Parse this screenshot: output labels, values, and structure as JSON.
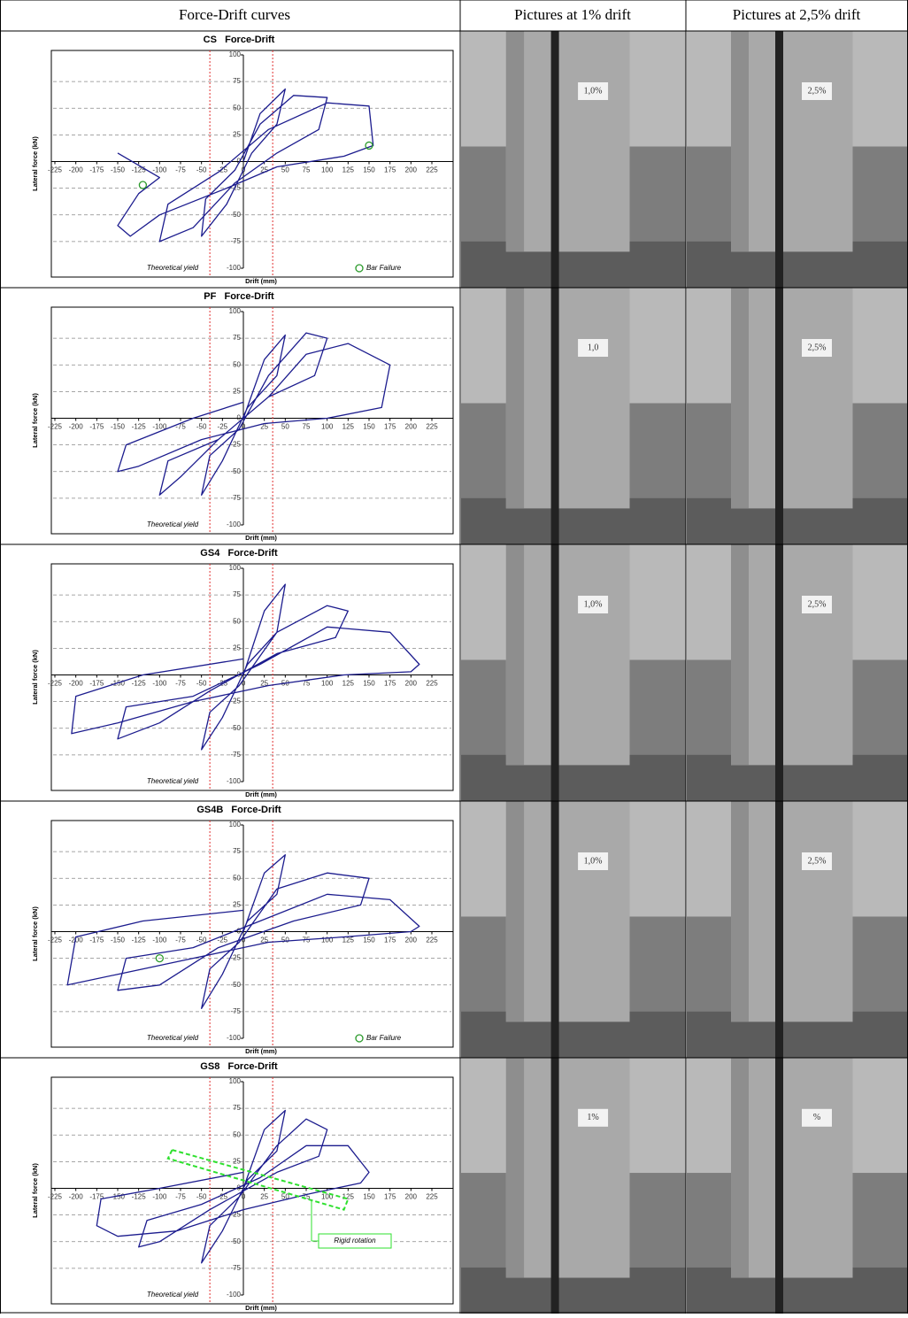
{
  "table": {
    "headers": [
      "Force-Drift curves",
      "Pictures at 1% drift",
      "Pictures at 2,5% drift"
    ],
    "rows": [
      {
        "photo_labels": [
          "1,0%",
          "2,5%"
        ]
      },
      {
        "photo_labels": [
          "1,0",
          "2,5%"
        ]
      },
      {
        "photo_labels": [
          "1,0%",
          "2,5%"
        ]
      },
      {
        "photo_labels": [
          "1,0%",
          "2,5%"
        ]
      },
      {
        "photo_labels": [
          "1%",
          "%"
        ]
      }
    ]
  },
  "chart_data": [
    {
      "type": "line",
      "title": "CS   Force-Drift",
      "xlabel": "Drift (mm)",
      "ylabel": "Lateral force (kN)",
      "xlim": [
        -225,
        225
      ],
      "ylim": [
        -100,
        100
      ],
      "xticks": [
        -225,
        -200,
        -175,
        -150,
        -125,
        -100,
        -75,
        -50,
        -25,
        0,
        25,
        50,
        75,
        100,
        125,
        150,
        175,
        200,
        225
      ],
      "yticks": [
        -100,
        -75,
        -50,
        -25,
        0,
        25,
        50,
        75,
        100
      ],
      "x": [
        0,
        20,
        50,
        40,
        10,
        -20,
        -50,
        -45,
        -10,
        20,
        60,
        100,
        90,
        40,
        -10,
        -60,
        -100,
        -90,
        -30,
        30,
        100,
        150,
        155,
        120,
        40,
        -20,
        -100,
        -135,
        -150,
        -125,
        -100,
        -150
      ],
      "series": [
        {
          "color": "#1c1c8e",
          "values": [
            0,
            45,
            68,
            35,
            8,
            -40,
            -70,
            -35,
            -8,
            35,
            62,
            60,
            30,
            8,
            -20,
            -62,
            -75,
            -40,
            -10,
            30,
            55,
            52,
            15,
            5,
            -5,
            -25,
            -50,
            -70,
            -60,
            -30,
            -15,
            8
          ]
        }
      ],
      "yield_lines": {
        "label": "Theoretical yield",
        "x": [
          -40,
          35
        ],
        "color": "#e03030"
      },
      "markers": {
        "name": "Bar Failure",
        "color": "#2a9a2a",
        "x": [
          -120,
          150
        ],
        "y": [
          -22,
          15
        ]
      }
    },
    {
      "type": "line",
      "title": "PF   Force-Drift",
      "xlabel": "Drift (mm)",
      "ylabel": "Lateral force (kN)",
      "xlim": [
        -225,
        225
      ],
      "ylim": [
        -100,
        100
      ],
      "xticks": [
        -225,
        -200,
        -175,
        -150,
        -125,
        -100,
        -75,
        -50,
        -25,
        0,
        25,
        50,
        75,
        100,
        125,
        150,
        175,
        200,
        225
      ],
      "yticks": [
        -100,
        -75,
        -50,
        -25,
        0,
        25,
        50,
        75,
        100
      ],
      "x": [
        0,
        25,
        50,
        40,
        5,
        -25,
        -50,
        -40,
        -5,
        30,
        75,
        100,
        85,
        30,
        -30,
        -75,
        -100,
        -90,
        -30,
        30,
        75,
        125,
        175,
        165,
        100,
        25,
        -50,
        -125,
        -150,
        -140,
        -60,
        0
      ],
      "series": [
        {
          "color": "#1c1c8e",
          "values": [
            0,
            55,
            78,
            40,
            10,
            -40,
            -72,
            -35,
            -10,
            40,
            80,
            75,
            40,
            20,
            -20,
            -55,
            -72,
            -40,
            -20,
            20,
            60,
            70,
            50,
            10,
            0,
            -5,
            -20,
            -45,
            -50,
            -25,
            0,
            15
          ]
        }
      ],
      "yield_lines": {
        "label": "Theoretical yield",
        "x": [
          -40,
          35
        ],
        "color": "#e03030"
      }
    },
    {
      "type": "line",
      "title": "GS4   Force-Drift",
      "xlabel": "Drift (mm)",
      "ylabel": "Lateral force (kN)",
      "xlim": [
        -225,
        225
      ],
      "ylim": [
        -100,
        100
      ],
      "xticks": [
        -225,
        -200,
        -175,
        -150,
        -125,
        -100,
        -75,
        -50,
        -25,
        0,
        25,
        50,
        75,
        100,
        125,
        150,
        175,
        200,
        225
      ],
      "yticks": [
        -100,
        -75,
        -50,
        -25,
        0,
        25,
        50,
        75,
        100
      ],
      "x": [
        0,
        25,
        50,
        40,
        5,
        -25,
        -50,
        -40,
        -5,
        40,
        100,
        125,
        110,
        40,
        -40,
        -100,
        -150,
        -140,
        -60,
        20,
        100,
        175,
        210,
        200,
        120,
        30,
        -60,
        -150,
        -205,
        -200,
        -120,
        0
      ],
      "series": [
        {
          "color": "#1c1c8e",
          "values": [
            0,
            60,
            85,
            40,
            10,
            -40,
            -70,
            -35,
            -10,
            40,
            65,
            60,
            35,
            20,
            -15,
            -45,
            -60,
            -30,
            -20,
            10,
            45,
            40,
            10,
            3,
            0,
            -10,
            -25,
            -45,
            -55,
            -20,
            0,
            15
          ]
        }
      ],
      "yield_lines": {
        "label": "Theoretical yield",
        "x": [
          -40,
          35
        ],
        "color": "#e03030"
      }
    },
    {
      "type": "line",
      "title": "GS4B   Force-Drift",
      "xlabel": "Drift (mm)",
      "ylabel": "Lateral force (kN)",
      "xlim": [
        -225,
        225
      ],
      "ylim": [
        -100,
        100
      ],
      "xticks": [
        -225,
        -200,
        -175,
        -150,
        -125,
        -100,
        -75,
        -50,
        -25,
        0,
        25,
        50,
        75,
        100,
        125,
        150,
        175,
        200,
        225
      ],
      "yticks": [
        -100,
        -75,
        -50,
        -25,
        0,
        25,
        50,
        75,
        100
      ],
      "x": [
        0,
        25,
        50,
        40,
        5,
        -25,
        -50,
        -40,
        -5,
        40,
        100,
        150,
        140,
        60,
        -30,
        -100,
        -150,
        -140,
        -60,
        20,
        100,
        175,
        210,
        200,
        120,
        30,
        -60,
        -150,
        -210,
        -200,
        -120,
        0
      ],
      "series": [
        {
          "color": "#1c1c8e",
          "values": [
            0,
            55,
            72,
            35,
            10,
            -40,
            -72,
            -35,
            -10,
            40,
            55,
            50,
            25,
            10,
            -15,
            -50,
            -55,
            -25,
            -15,
            10,
            35,
            30,
            5,
            0,
            -5,
            -10,
            -25,
            -40,
            -50,
            -5,
            10,
            20
          ]
        }
      ],
      "yield_lines": {
        "label": "Theoretical yield",
        "x": [
          -40,
          35
        ],
        "color": "#e03030"
      },
      "markers": {
        "name": "Bar Failure",
        "color": "#2a9a2a",
        "x": [
          -100
        ],
        "y": [
          -25
        ]
      }
    },
    {
      "type": "line",
      "title": "GS8   Force-Drift",
      "xlabel": "Drift (mm)",
      "ylabel": "Lateral force (kN)",
      "xlim": [
        -225,
        225
      ],
      "ylim": [
        -100,
        100
      ],
      "xticks": [
        -225,
        -200,
        -175,
        -150,
        -125,
        -100,
        -75,
        -50,
        -25,
        0,
        25,
        50,
        75,
        100,
        125,
        150,
        175,
        200,
        225
      ],
      "yticks": [
        -100,
        -75,
        -50,
        -25,
        0,
        25,
        50,
        75,
        100
      ],
      "x": [
        0,
        25,
        50,
        40,
        5,
        -25,
        -50,
        -40,
        -5,
        40,
        75,
        100,
        90,
        40,
        -40,
        -100,
        -125,
        -115,
        -50,
        20,
        75,
        125,
        150,
        140,
        80,
        0,
        -80,
        -150,
        -175,
        -170,
        -100,
        0
      ],
      "series": [
        {
          "color": "#1c1c8e",
          "values": [
            0,
            55,
            73,
            35,
            8,
            -40,
            -70,
            -35,
            -8,
            40,
            65,
            55,
            30,
            15,
            -20,
            -50,
            -55,
            -30,
            -15,
            10,
            40,
            40,
            15,
            5,
            -5,
            -20,
            -40,
            -45,
            -35,
            -10,
            0,
            15
          ]
        }
      ],
      "yield_lines": {
        "label": "Theoretical yield",
        "x": [
          -40,
          35
        ],
        "color": "#e03030"
      },
      "annotation": "Rigid rotation"
    }
  ]
}
